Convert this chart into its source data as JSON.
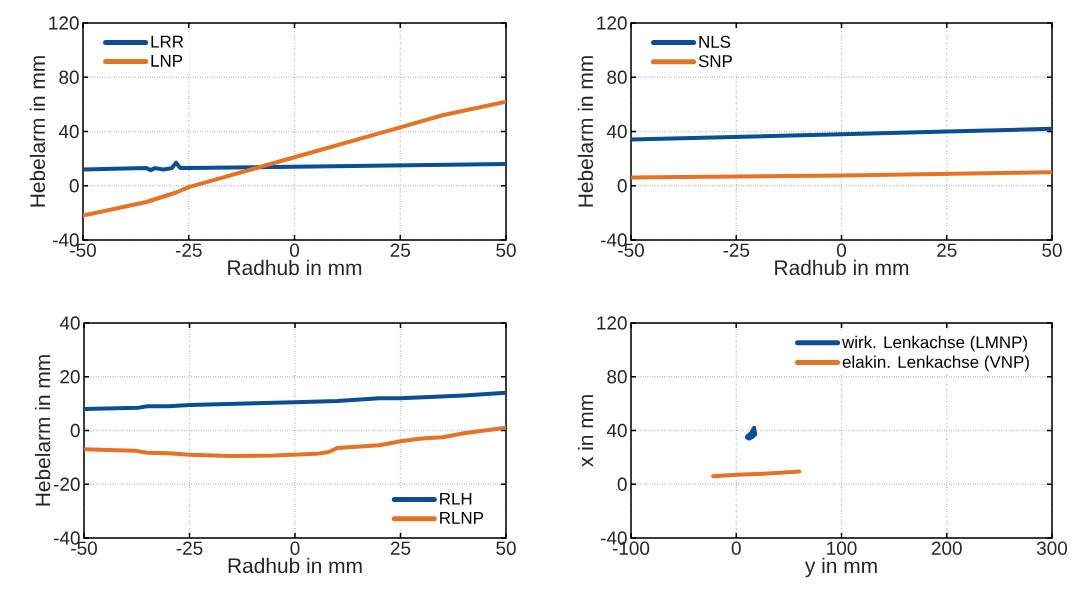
{
  "chart_data": [
    {
      "type": "line",
      "xlabel": "Radhub in mm",
      "ylabel": "Hebelarm in mm",
      "xlim": [
        -50,
        50
      ],
      "ylim": [
        -40,
        120
      ],
      "xticks": [
        -50,
        -25,
        0,
        25,
        50
      ],
      "yticks": [
        -40,
        0,
        40,
        80,
        120
      ],
      "grid": true,
      "legend": "top left",
      "series": [
        {
          "name": "LRR",
          "color": "#0a4f96",
          "x": [
            -50,
            -35,
            -34,
            -33,
            -31,
            -29,
            -28,
            -27,
            -25,
            0,
            25,
            50
          ],
          "values": [
            12,
            13,
            11.5,
            13,
            12,
            13,
            17,
            13,
            13,
            14,
            15,
            16
          ]
        },
        {
          "name": "LNP",
          "color": "#e67324",
          "x": [
            -50,
            -35,
            -28,
            -25,
            0,
            25,
            35,
            50
          ],
          "values": [
            -22,
            -12,
            -5,
            -1,
            21,
            43,
            52,
            62
          ]
        }
      ]
    },
    {
      "type": "line",
      "xlabel": "Radhub in mm",
      "ylabel": "Hebelarm in mm",
      "xlim": [
        -50,
        50
      ],
      "ylim": [
        -40,
        120
      ],
      "xticks": [
        -50,
        -25,
        0,
        25,
        50
      ],
      "yticks": [
        -40,
        0,
        40,
        80,
        120
      ],
      "grid": true,
      "legend": "top left",
      "series": [
        {
          "name": "NLS",
          "color": "#0a4f96",
          "x": [
            -50,
            0,
            25,
            50
          ],
          "values": [
            34,
            38,
            40,
            42
          ]
        },
        {
          "name": "SNP",
          "color": "#e67324",
          "x": [
            -50,
            0,
            50
          ],
          "values": [
            6,
            7.5,
            10
          ]
        }
      ]
    },
    {
      "type": "line",
      "xlabel": "Radhub in mm",
      "ylabel": "Hebelarm in mm",
      "xlim": [
        -50,
        50
      ],
      "ylim": [
        -40,
        40
      ],
      "xticks": [
        -50,
        -25,
        0,
        25,
        50
      ],
      "yticks": [
        -40,
        -20,
        0,
        20,
        40
      ],
      "grid": true,
      "legend": "bottom right",
      "series": [
        {
          "name": "RLH",
          "color": "#0a4f96",
          "x": [
            -50,
            -37,
            -35,
            -30,
            -25,
            0,
            10,
            20,
            25,
            40,
            50
          ],
          "values": [
            8,
            8.5,
            9,
            9,
            9.5,
            10.5,
            11,
            12,
            12,
            13,
            14
          ]
        },
        {
          "name": "RLNP",
          "color": "#e67324",
          "x": [
            -50,
            -38,
            -35,
            -30,
            -25,
            -15,
            -5,
            5,
            8,
            10,
            20,
            25,
            30,
            35,
            40,
            50
          ],
          "values": [
            -7,
            -7.5,
            -8.3,
            -8.5,
            -9,
            -9.5,
            -9.3,
            -8.7,
            -8,
            -6.5,
            -5.5,
            -4,
            -3,
            -2.5,
            -1,
            1
          ]
        }
      ]
    },
    {
      "type": "line",
      "xlabel": "y in mm",
      "ylabel": "x in mm",
      "xlim": [
        -100,
        300
      ],
      "ylim": [
        -40,
        120
      ],
      "xticks": [
        -100,
        0,
        100,
        200,
        300
      ],
      "yticks": [
        -40,
        0,
        40,
        80,
        120
      ],
      "grid": true,
      "legend": "top right",
      "series": [
        {
          "name": "wirk. Lenkachse (LMNP)",
          "color": "#0a4f96",
          "x": [
            10,
            12,
            15,
            18,
            17,
            14,
            11
          ],
          "values": [
            35,
            34,
            35,
            37,
            42,
            38,
            36
          ]
        },
        {
          "name": "elakin. Lenkachse (VNP)",
          "color": "#e67324",
          "x": [
            -22,
            0,
            30,
            60
          ],
          "values": [
            6,
            7,
            8,
            9.5
          ]
        }
      ]
    }
  ]
}
